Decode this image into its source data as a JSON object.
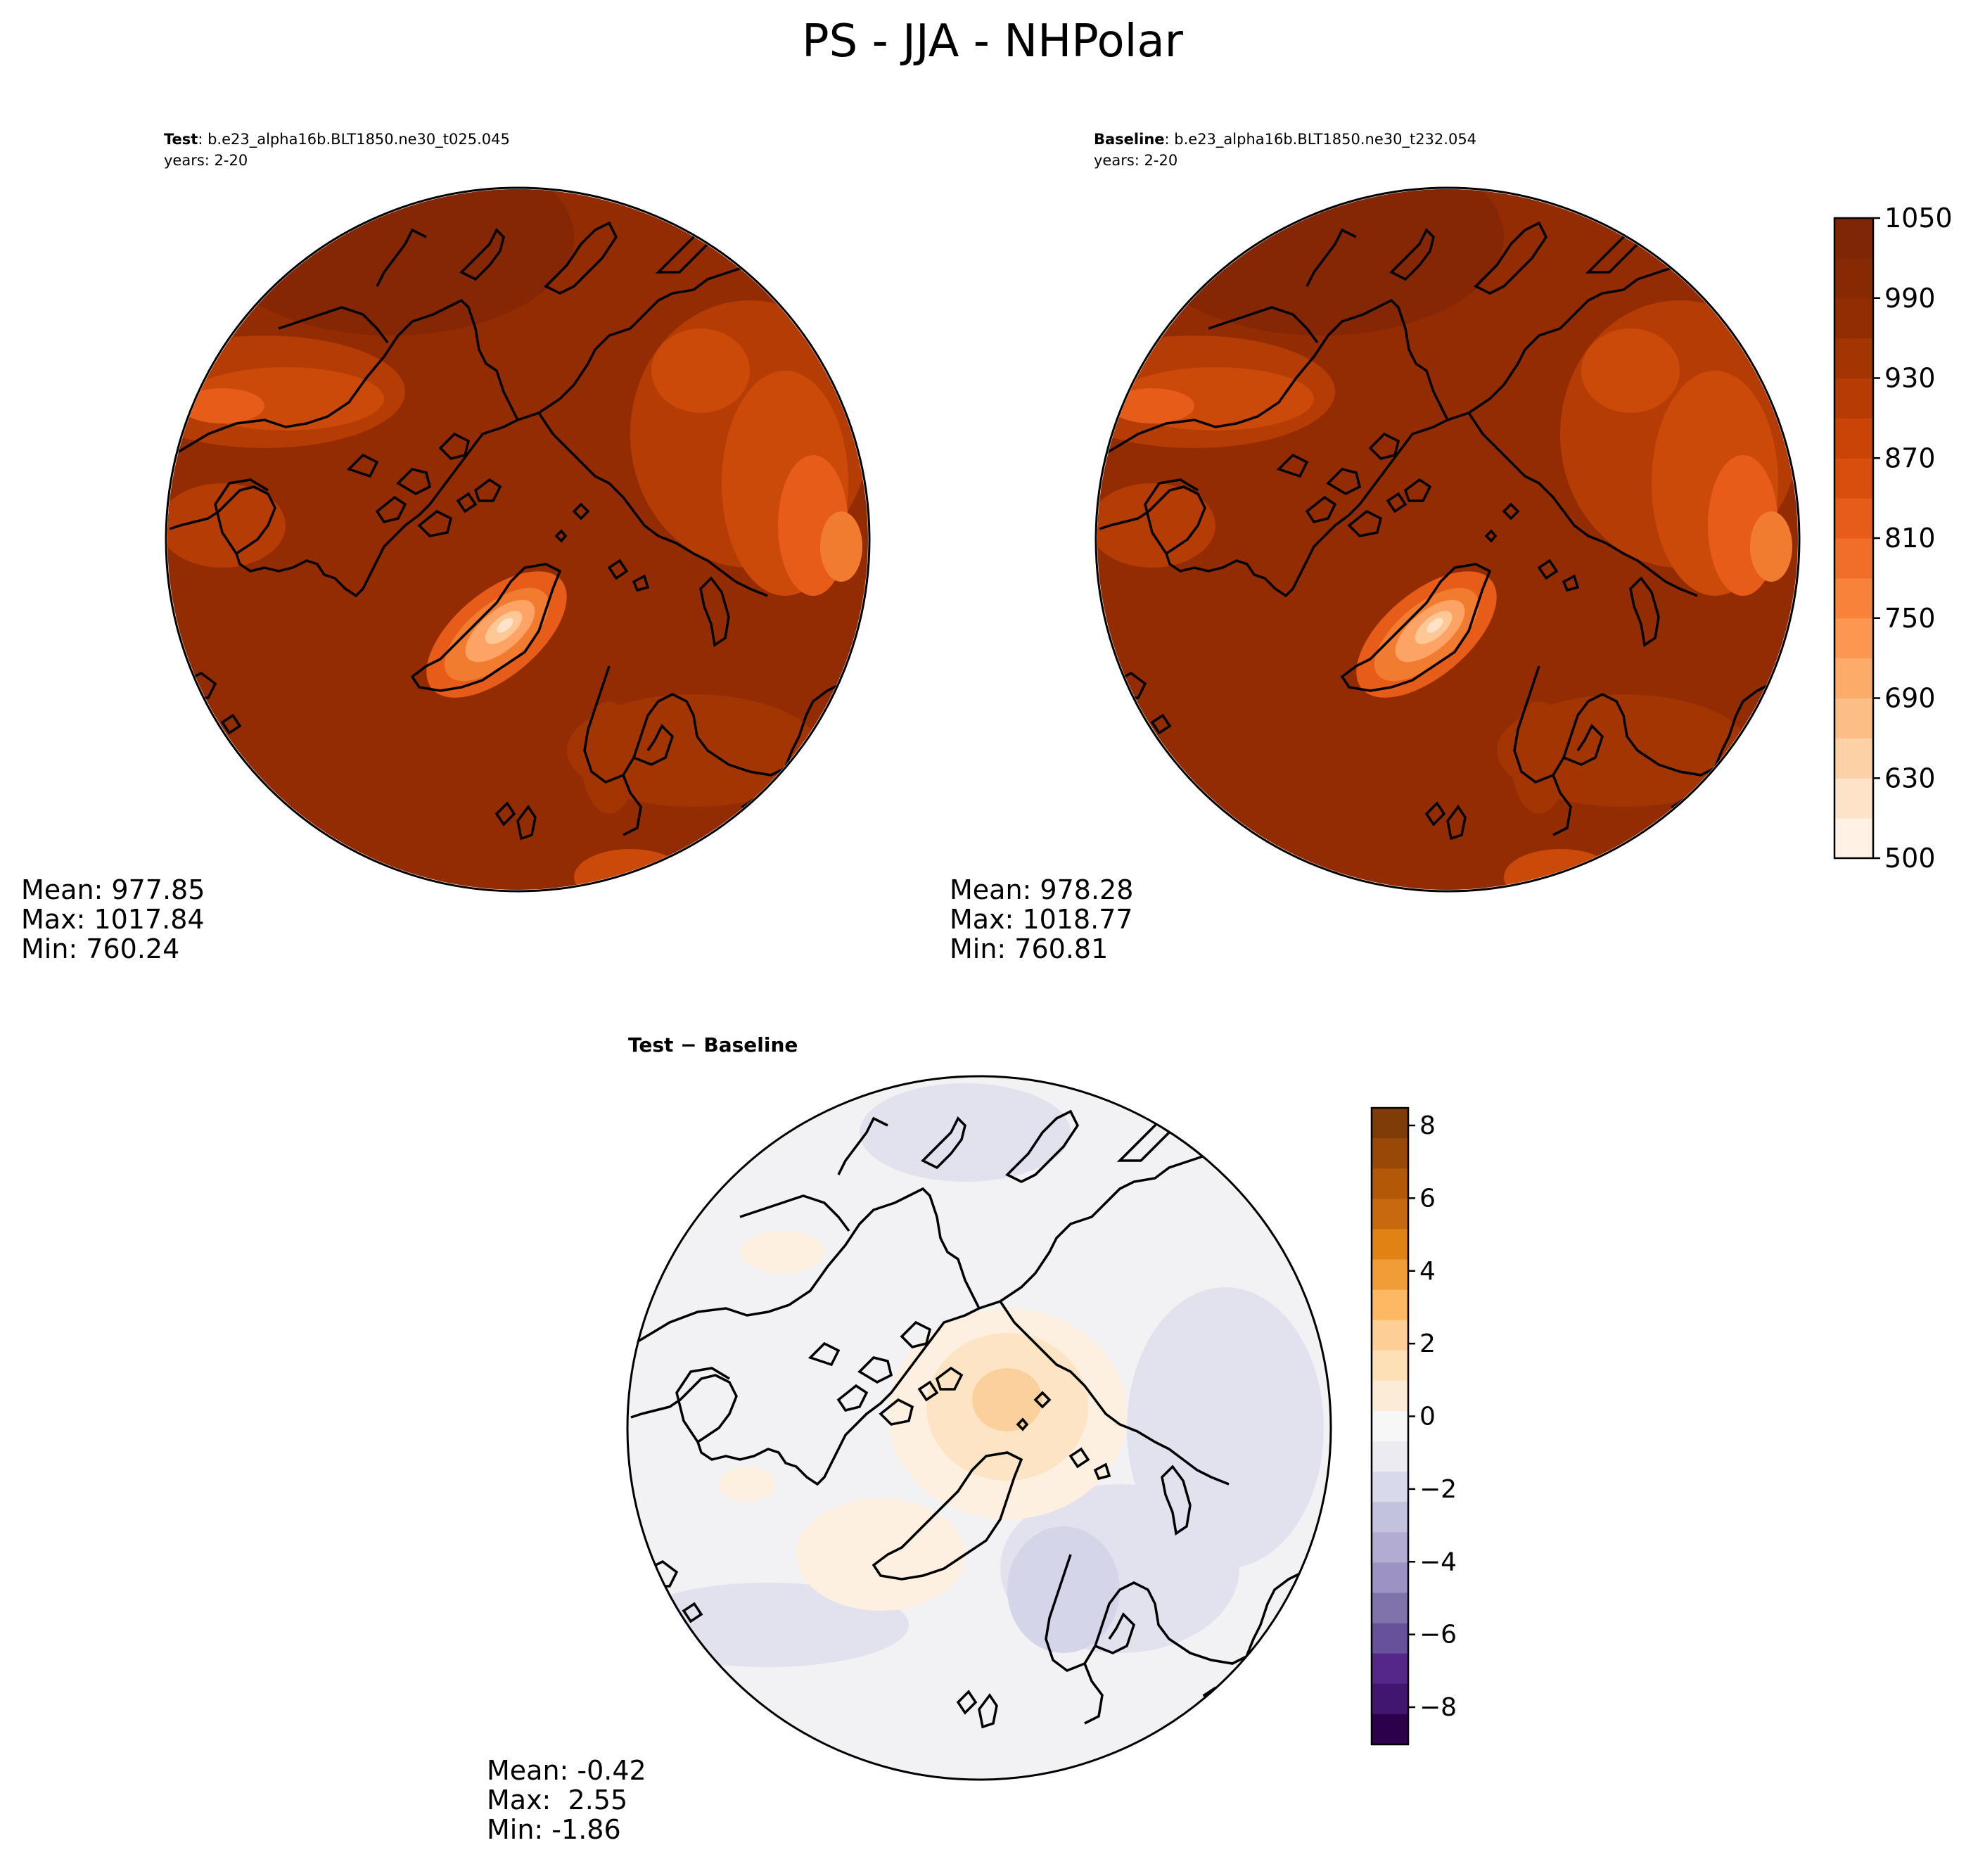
{
  "figure": {
    "title": "PS - JJA - NHPolar"
  },
  "panels": [
    {
      "id": "test",
      "label_bold": "Test",
      "label_rest": ": b.e23_alpha16b.BLT1850.ne30_t025.045",
      "years": "years: 2-20",
      "stats": {
        "mean": "Mean: 977.85",
        "max": "Max: 1017.84",
        "min": "Min: 760.24"
      }
    },
    {
      "id": "baseline",
      "label_bold": "Baseline",
      "label_rest": ": b.e23_alpha16b.BLT1850.ne30_t232.054",
      "years": "years: 2-20",
      "stats": {
        "mean": "Mean: 978.28",
        "max": "Max: 1018.77",
        "min": "Min: 760.81"
      }
    },
    {
      "id": "diff",
      "label_bold": "Test − Baseline",
      "stats": {
        "mean": "Mean: -0.42",
        "max": "Max:  2.55",
        "min": "Min: -1.86"
      }
    }
  ],
  "colorbars": {
    "main": {
      "ticks": [
        "500",
        "630",
        "690",
        "750",
        "810",
        "870",
        "930",
        "990",
        "1050"
      ],
      "colors": [
        "#fff1e3",
        "#fee3c8",
        "#fdd1a6",
        "#fdbe86",
        "#fdab69",
        "#fd9650",
        "#f8823a",
        "#f06e28",
        "#e65c18",
        "#d94e0c",
        "#c94406",
        "#b63c04",
        "#a33503",
        "#922d03",
        "#862a04",
        "#7f2704"
      ]
    },
    "diff": {
      "ticks": [
        "8",
        "6",
        "4",
        "2",
        "0",
        "−2",
        "−4",
        "−6",
        "−8"
      ],
      "colors_top_to_bottom": [
        "#7f3b08",
        "#9a4807",
        "#b35806",
        "#c8680f",
        "#e08214",
        "#f09d38",
        "#fdb863",
        "#fdcf96",
        "#fee0b6",
        "#fcebd7",
        "#f7f7f7",
        "#ebebf1",
        "#d8daeb",
        "#c3c2de",
        "#b2abd2",
        "#9d93c3",
        "#8073ac",
        "#66519a",
        "#542788",
        "#3f1670",
        "#2d004b"
      ]
    }
  },
  "map_palette": {
    "ocean": "#942c03",
    "ocean_dark": "#852704",
    "land_high": "#b53c04",
    "land_mid": "#cc4a09",
    "land_light": "#e65c18",
    "greenland_1": "#f17c30",
    "greenland_2": "#fda366",
    "greenland_3": "#fdc895",
    "greenland_4": "#fee3c8",
    "diff_bg": "#f2f2f4",
    "diff_blue": "#e1e2ee",
    "diff_blue2": "#d4d5e8",
    "diff_orange1": "#fdf0e0",
    "diff_orange2": "#fde4c4",
    "diff_orange3": "#fbd09c"
  }
}
